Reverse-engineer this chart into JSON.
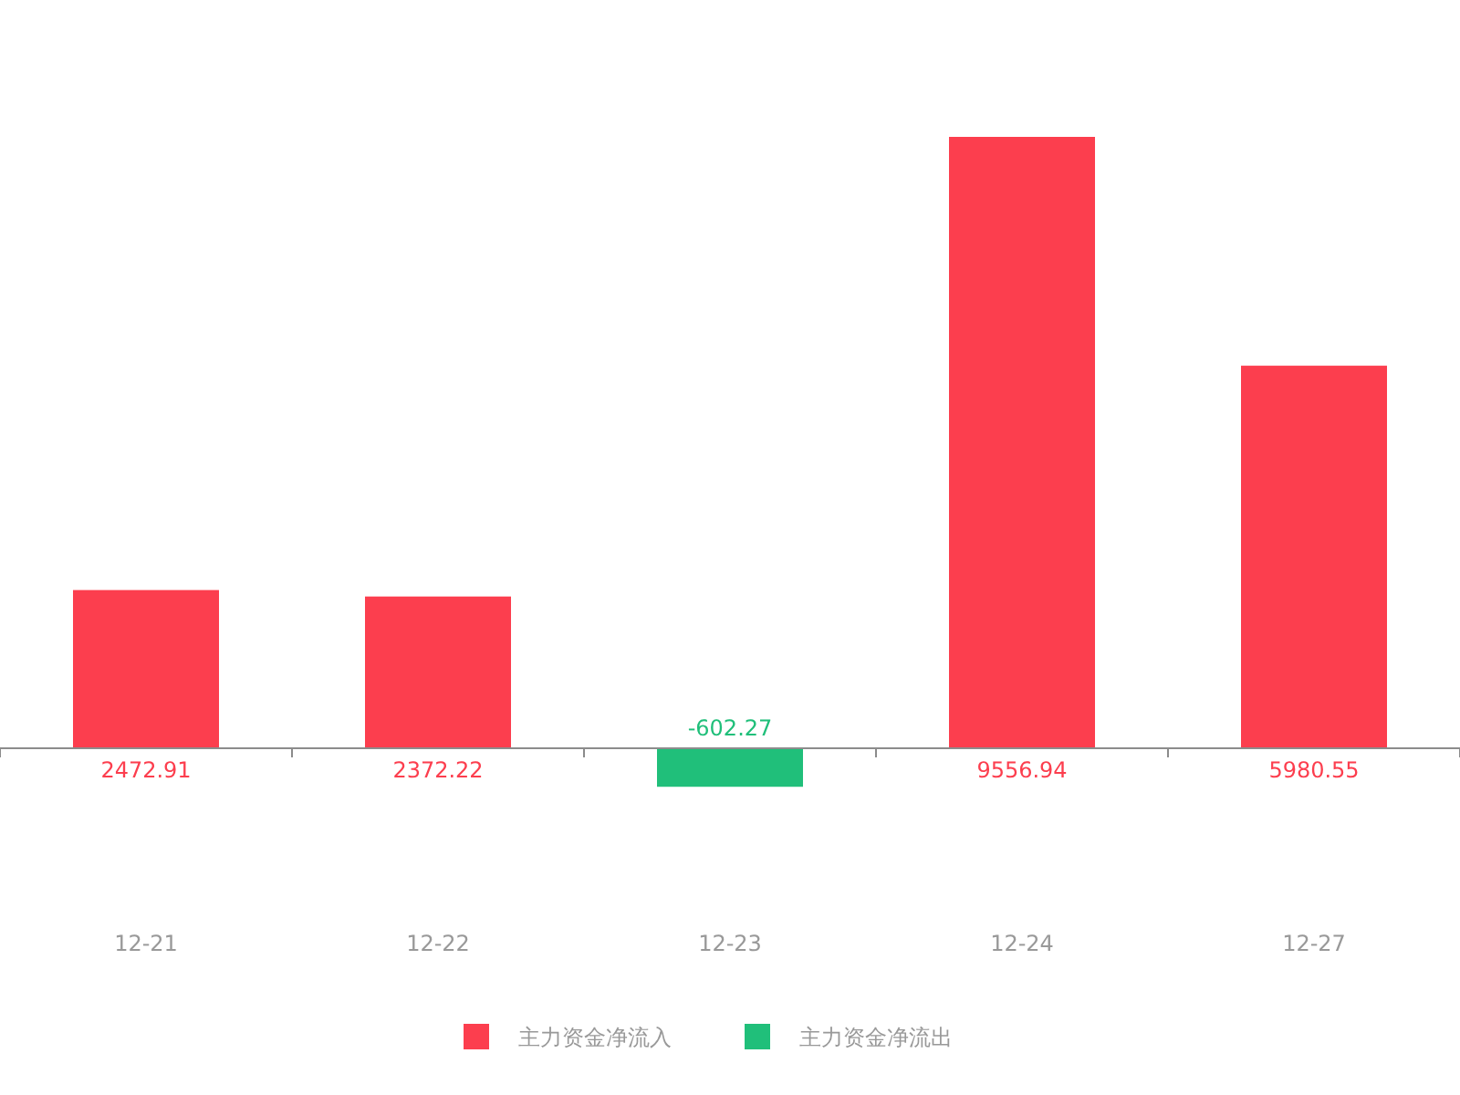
{
  "chart_data": {
    "type": "bar",
    "categories": [
      "12-21",
      "12-22",
      "12-23",
      "12-24",
      "12-27"
    ],
    "series": [
      {
        "name": "主力资金净流入",
        "color": "#fc3e4e",
        "values": [
          2472.91,
          2372.22,
          null,
          9556.94,
          5980.55
        ]
      },
      {
        "name": "主力资金净流出",
        "color": "#20bf7a",
        "values": [
          null,
          null,
          -602.27,
          null,
          null
        ]
      }
    ],
    "stacked": true,
    "data_labels": true,
    "legend": "bottom"
  }
}
